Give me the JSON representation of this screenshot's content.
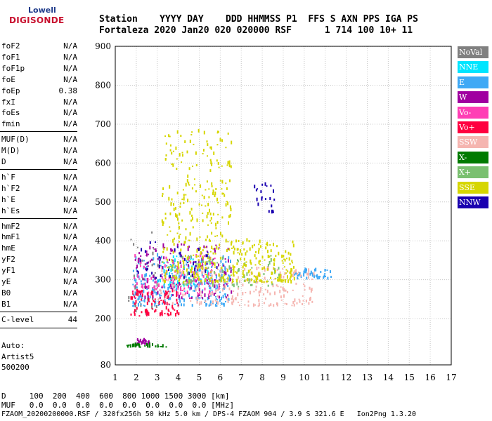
{
  "logo": {
    "line1": "Lowell",
    "line2": "DIGISONDE"
  },
  "header": {
    "line1": "Station    YYYY DAY    DDD HHMMSS P1  FFS S AXN PPS IGA PS",
    "line2": "Fortaleza 2020 Jan20 020 020000 RSF      1 714 100 10+ 11"
  },
  "params": {
    "group1": [
      {
        "name": "foF2",
        "value": "N/A"
      },
      {
        "name": "foF1",
        "value": "N/A"
      },
      {
        "name": "foF1p",
        "value": "N/A"
      },
      {
        "name": "foE",
        "value": "N/A"
      },
      {
        "name": "foEp",
        "value": "0.38"
      },
      {
        "name": "fxI",
        "value": "N/A"
      },
      {
        "name": "foEs",
        "value": "N/A"
      },
      {
        "name": "fmin",
        "value": "N/A"
      }
    ],
    "group2": [
      {
        "name": "MUF(D)",
        "value": "N/A"
      },
      {
        "name": "M(D)",
        "value": "N/A"
      },
      {
        "name": "D",
        "value": "N/A"
      }
    ],
    "group3": [
      {
        "name": "h`F",
        "value": "N/A"
      },
      {
        "name": "h`F2",
        "value": "N/A"
      },
      {
        "name": "h`E",
        "value": "N/A"
      },
      {
        "name": "h`Es",
        "value": "N/A"
      }
    ],
    "group4": [
      {
        "name": "hmF2",
        "value": "N/A"
      },
      {
        "name": "hmF1",
        "value": "N/A"
      },
      {
        "name": "hmE",
        "value": "N/A"
      },
      {
        "name": "yF2",
        "value": "N/A"
      },
      {
        "name": "yF1",
        "value": "N/A"
      },
      {
        "name": "yE",
        "value": "N/A"
      },
      {
        "name": "B0",
        "value": "N/A"
      },
      {
        "name": "B1",
        "value": "N/A"
      }
    ],
    "group5": [
      {
        "name": "C-level",
        "value": "44"
      }
    ]
  },
  "autoscaler": {
    "line1": "Auto:",
    "line2": "Artist5",
    "line3": "500200"
  },
  "footer": {
    "d_row": "D     100  200  400  600  800 1000 1500 3000 [km]",
    "muf_row": "MUF   0.0  0.0  0.0  0.0  0.0  0.0  0.0  0.0 [MHz]",
    "file_row": "FZAOM_20200200000.RSF / 320fx256h 50 kHz 5.0 km / DPS-4 FZAOM 904 / 3.9 S 321.6 E   Ion2Png 1.3.20"
  },
  "legend": [
    {
      "label": "NoVal",
      "color": "#808080"
    },
    {
      "label": "NNE",
      "color": "#00e5ff"
    },
    {
      "label": "E",
      "color": "#3fa9f5"
    },
    {
      "label": "W",
      "color": "#a000a0"
    },
    {
      "label": "Vo-",
      "color": "#ff3eb5"
    },
    {
      "label": "Vo+",
      "color": "#ff0040"
    },
    {
      "label": "SSW",
      "color": "#f5b5b0"
    },
    {
      "label": "X-",
      "color": "#007a00"
    },
    {
      "label": "X+",
      "color": "#7ac070"
    },
    {
      "label": "SSE",
      "color": "#d6d600"
    },
    {
      "label": "NNW",
      "color": "#1a00b0"
    }
  ],
  "chart_data": {
    "type": "scatter",
    "xlabel": "",
    "ylabel": "",
    "xlim": [
      1,
      17
    ],
    "ylim": [
      80,
      900
    ],
    "x_ticks": [
      1,
      2,
      3,
      4,
      5,
      6,
      7,
      8,
      9,
      10,
      11,
      12,
      13,
      14,
      15,
      16,
      17
    ],
    "y_ticks": [
      80,
      200,
      300,
      400,
      500,
      600,
      700,
      800,
      900
    ],
    "grid": true,
    "legend_position": "right",
    "clusters": [
      {
        "series": "NoVal",
        "x": [
          1.6,
          3.0
        ],
        "y": [
          200,
          420
        ],
        "n": 40
      },
      {
        "series": "NNE",
        "x": [
          3.0,
          5.5
        ],
        "y": [
          280,
          360
        ],
        "n": 60
      },
      {
        "series": "E",
        "x": [
          1.8,
          6.5
        ],
        "y": [
          230,
          360
        ],
        "n": 260
      },
      {
        "series": "E",
        "x": [
          9.5,
          11.3
        ],
        "y": [
          300,
          325
        ],
        "n": 45
      },
      {
        "series": "W",
        "x": [
          1.9,
          6.5
        ],
        "y": [
          250,
          390
        ],
        "n": 160
      },
      {
        "series": "W",
        "x": [
          2.0,
          2.6
        ],
        "y": [
          132,
          142
        ],
        "n": 25
      },
      {
        "series": "Vo-",
        "x": [
          1.8,
          6.0
        ],
        "y": [
          260,
          360
        ],
        "n": 120
      },
      {
        "series": "Vo+",
        "x": [
          1.7,
          4.0
        ],
        "y": [
          205,
          270
        ],
        "n": 90
      },
      {
        "series": "SSW",
        "x": [
          3.0,
          10.5
        ],
        "y": [
          230,
          330
        ],
        "n": 220
      },
      {
        "series": "X-",
        "x": [
          1.5,
          3.4
        ],
        "y": [
          124,
          130
        ],
        "n": 30
      },
      {
        "series": "X+",
        "x": [
          3.5,
          9.0
        ],
        "y": [
          280,
          360
        ],
        "n": 80
      },
      {
        "series": "SSE",
        "x": [
          3.2,
          6.5
        ],
        "y": [
          290,
          680
        ],
        "n": 320
      },
      {
        "series": "SSE",
        "x": [
          6.5,
          9.5
        ],
        "y": [
          290,
          400
        ],
        "n": 160
      },
      {
        "series": "NNW",
        "x": [
          7.5,
          8.6
        ],
        "y": [
          470,
          545
        ],
        "n": 22
      },
      {
        "series": "NNW",
        "x": [
          2.0,
          6.0
        ],
        "y": [
          300,
          400
        ],
        "n": 40
      }
    ]
  }
}
